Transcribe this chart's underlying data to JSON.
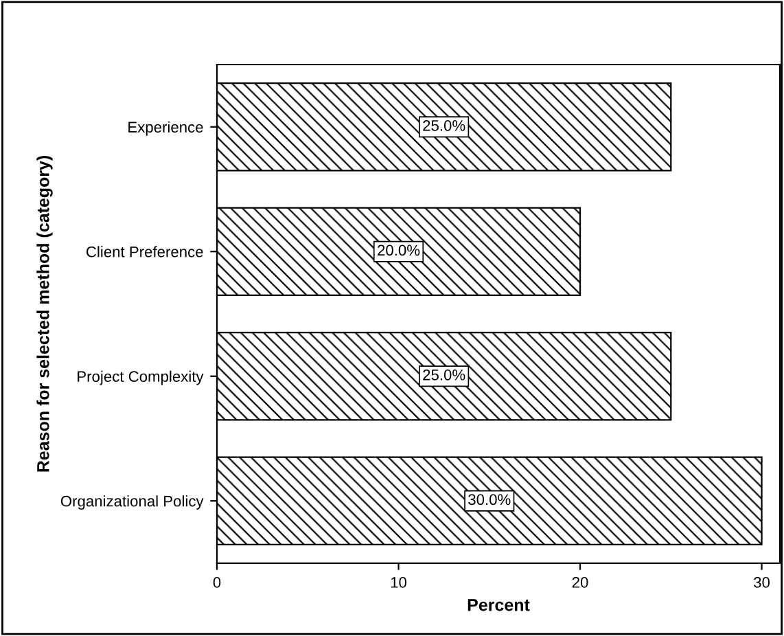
{
  "chart_data": {
    "type": "bar",
    "orientation": "horizontal",
    "xlabel": "Percent",
    "ylabel": "Reason for selected method (category)",
    "categories": [
      "Experience",
      "Client Preference",
      "Project Complexity",
      "Organizational Policy"
    ],
    "values": [
      25,
      20,
      25,
      30
    ],
    "value_labels": [
      "25.0%",
      "20.0%",
      "25.0%",
      "30.0%"
    ],
    "color": "#000000",
    "xlim": [
      0,
      31
    ],
    "xticks": [
      0,
      10,
      20,
      30
    ],
    "grid": false,
    "legend": false
  }
}
